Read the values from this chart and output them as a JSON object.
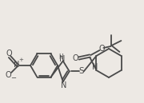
{
  "bg_color": "#ede9e4",
  "bond_color": "#4a4a4a",
  "lw": 1.3
}
